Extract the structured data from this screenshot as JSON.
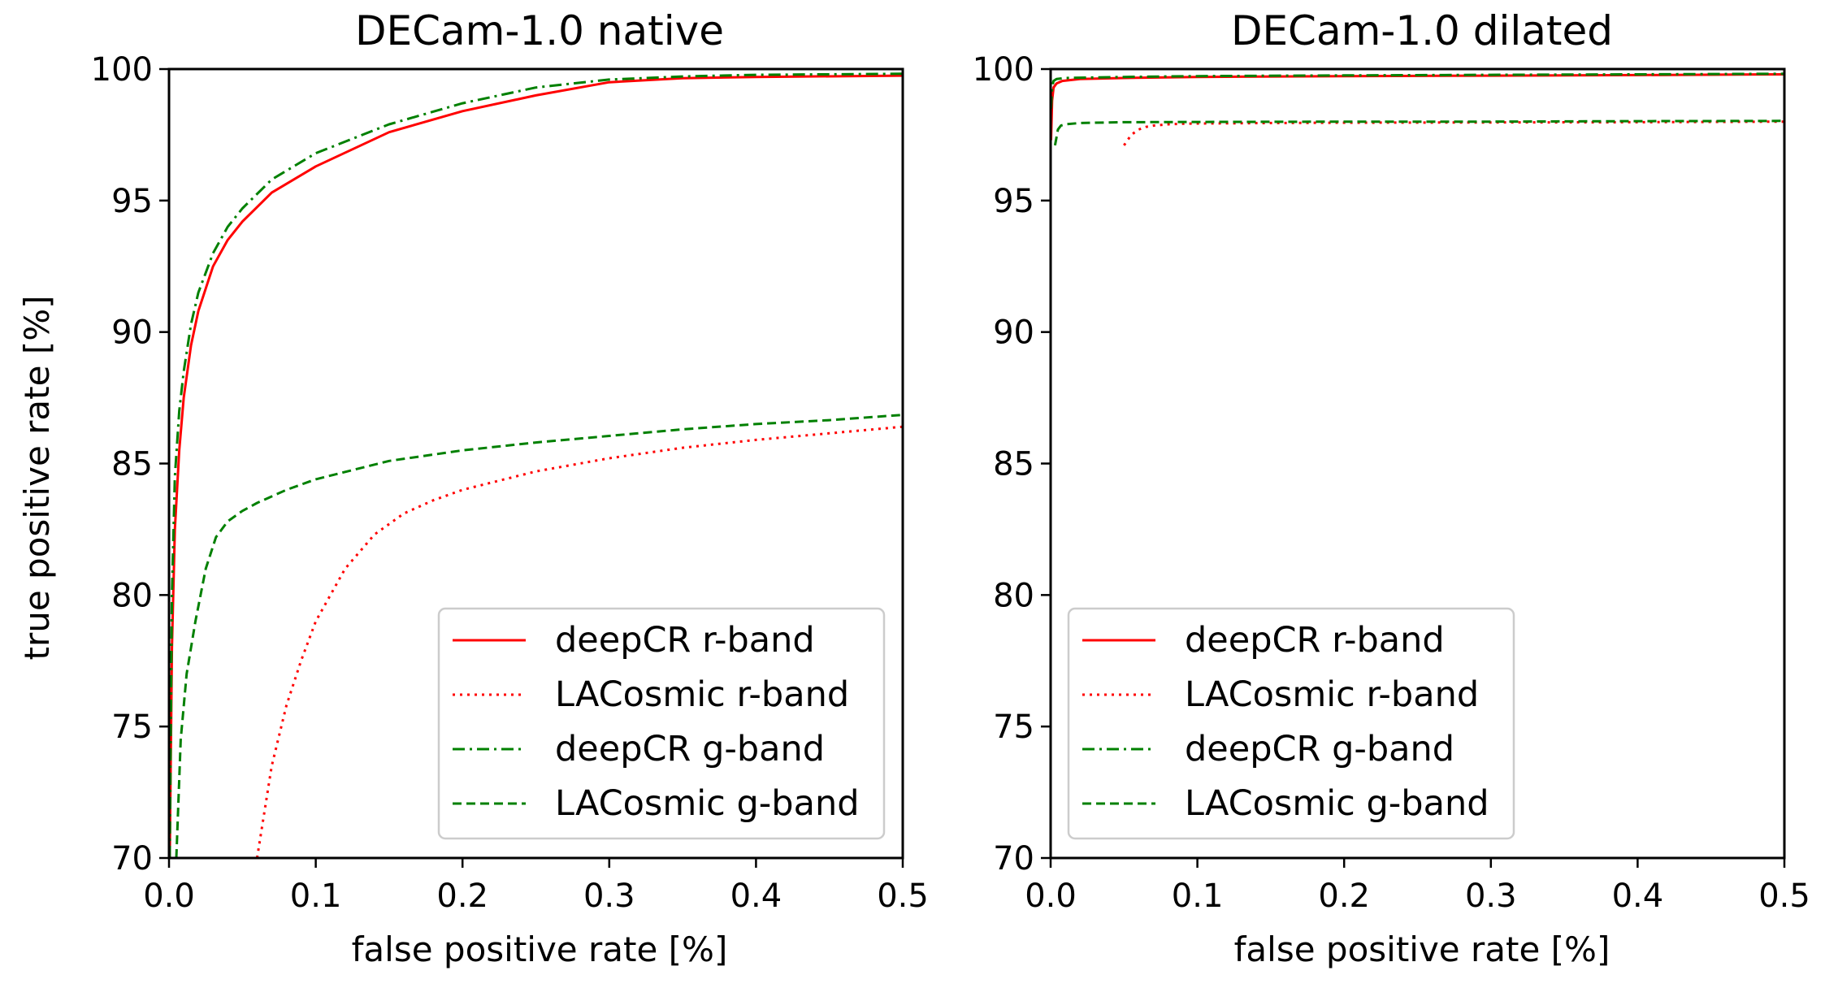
{
  "colors": {
    "red": "#ff0000",
    "green": "#008000"
  },
  "chart_data": [
    {
      "type": "line",
      "title": "DECam-1.0 native",
      "xlabel": "false positive rate [%]",
      "ylabel": "true positive rate [%]",
      "xlim": [
        0.0,
        0.5
      ],
      "ylim": [
        70,
        100
      ],
      "xticks": [
        "0.0",
        "0.1",
        "0.2",
        "0.3",
        "0.4",
        "0.5"
      ],
      "yticks": [
        "70",
        "75",
        "80",
        "85",
        "90",
        "95",
        "100"
      ],
      "grid": false,
      "legend_position": "lower-right",
      "series": [
        {
          "name": "deepCR r-band",
          "color": "#ff0000",
          "style": "solid",
          "x": [
            0.0005,
            0.002,
            0.004,
            0.007,
            0.01,
            0.015,
            0.02,
            0.03,
            0.04,
            0.05,
            0.07,
            0.1,
            0.15,
            0.2,
            0.25,
            0.3,
            0.35,
            0.4,
            0.5
          ],
          "y": [
            70,
            78,
            82.5,
            85.5,
            87.5,
            89.5,
            90.8,
            92.5,
            93.5,
            94.2,
            95.3,
            96.3,
            97.6,
            98.4,
            99.0,
            99.5,
            99.65,
            99.7,
            99.75
          ]
        },
        {
          "name": "LACosmic r-band",
          "color": "#ff0000",
          "style": "dotted",
          "x": [
            0.06,
            0.07,
            0.08,
            0.09,
            0.1,
            0.12,
            0.14,
            0.16,
            0.18,
            0.2,
            0.25,
            0.3,
            0.35,
            0.4,
            0.45,
            0.5
          ],
          "y": [
            70,
            73.5,
            75.8,
            77.5,
            79.0,
            81.0,
            82.3,
            83.1,
            83.6,
            84.0,
            84.7,
            85.2,
            85.6,
            85.9,
            86.15,
            86.4
          ]
        },
        {
          "name": "deepCR g-band",
          "color": "#008000",
          "style": "dashdot",
          "x": [
            0.0005,
            0.002,
            0.004,
            0.007,
            0.01,
            0.015,
            0.02,
            0.03,
            0.04,
            0.05,
            0.07,
            0.1,
            0.15,
            0.2,
            0.25,
            0.3,
            0.35,
            0.4,
            0.5
          ],
          "y": [
            70,
            80,
            84.5,
            87.0,
            88.5,
            90.3,
            91.5,
            93.0,
            94.0,
            94.7,
            95.8,
            96.8,
            97.9,
            98.7,
            99.3,
            99.6,
            99.72,
            99.78,
            99.82
          ]
        },
        {
          "name": "LACosmic g-band",
          "color": "#008000",
          "style": "dashed",
          "x": [
            0.005,
            0.008,
            0.012,
            0.018,
            0.025,
            0.032,
            0.04,
            0.05,
            0.06,
            0.08,
            0.1,
            0.15,
            0.2,
            0.25,
            0.3,
            0.35,
            0.4,
            0.45,
            0.5
          ],
          "y": [
            70,
            74.5,
            77,
            79,
            81,
            82.2,
            82.8,
            83.2,
            83.5,
            84.0,
            84.4,
            85.1,
            85.5,
            85.8,
            86.05,
            86.3,
            86.5,
            86.65,
            86.85
          ]
        }
      ]
    },
    {
      "type": "line",
      "title": "DECam-1.0 dilated",
      "xlabel": "false positive rate [%]",
      "ylabel": "",
      "xlim": [
        0.0,
        0.5
      ],
      "ylim": [
        70,
        100
      ],
      "xticks": [
        "0.0",
        "0.1",
        "0.2",
        "0.3",
        "0.4",
        "0.5"
      ],
      "yticks": [
        "70",
        "75",
        "80",
        "85",
        "90",
        "95",
        "100"
      ],
      "grid": false,
      "legend_position": "lower-left",
      "series": [
        {
          "name": "deepCR r-band",
          "color": "#ff0000",
          "style": "solid",
          "x": [
            0.0003,
            0.001,
            0.002,
            0.004,
            0.008,
            0.02,
            0.05,
            0.1,
            0.2,
            0.3,
            0.4,
            0.5
          ],
          "y": [
            97.3,
            98.8,
            99.3,
            99.45,
            99.55,
            99.62,
            99.66,
            99.7,
            99.73,
            99.75,
            99.77,
            99.8
          ]
        },
        {
          "name": "LACosmic r-band",
          "color": "#ff0000",
          "style": "dotted",
          "x": [
            0.05,
            0.055,
            0.06,
            0.065,
            0.07,
            0.08,
            0.09,
            0.1,
            0.15,
            0.2,
            0.3,
            0.4,
            0.5
          ],
          "y": [
            97.1,
            97.5,
            97.7,
            97.8,
            97.85,
            97.9,
            97.92,
            97.93,
            97.95,
            97.96,
            97.97,
            97.98,
            98.0
          ]
        },
        {
          "name": "deepCR g-band",
          "color": "#008000",
          "style": "dashdot",
          "x": [
            0.0003,
            0.001,
            0.002,
            0.004,
            0.01,
            0.05,
            0.1,
            0.2,
            0.3,
            0.4,
            0.5
          ],
          "y": [
            98.5,
            99.3,
            99.55,
            99.62,
            99.66,
            99.7,
            99.73,
            99.76,
            99.78,
            99.8,
            99.82
          ]
        },
        {
          "name": "LACosmic g-band",
          "color": "#008000",
          "style": "dashed",
          "x": [
            0.003,
            0.005,
            0.007,
            0.01,
            0.02,
            0.05,
            0.1,
            0.2,
            0.3,
            0.4,
            0.5
          ],
          "y": [
            97.1,
            97.7,
            97.85,
            97.9,
            97.95,
            97.98,
            97.99,
            98.0,
            98.0,
            98.02,
            98.03
          ]
        }
      ]
    }
  ]
}
